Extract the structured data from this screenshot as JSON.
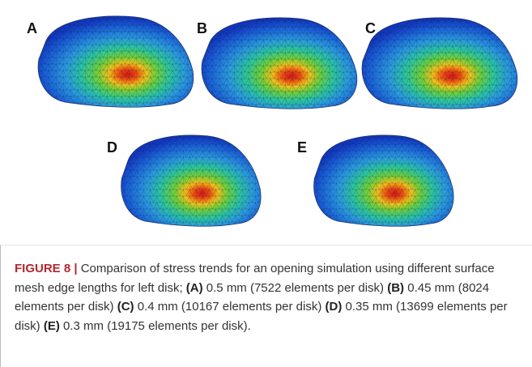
{
  "panels": {
    "labels": [
      "A",
      "B",
      "C",
      "D",
      "E"
    ]
  },
  "caption": {
    "figure_label": "FIGURE 8 |",
    "intro": "Comparison of stress trends for an opening simulation using different surface mesh edge lengths for left disk;",
    "items": [
      {
        "label": "(A)",
        "text": "0.5 mm (7522 elements per disk)"
      },
      {
        "label": "(B)",
        "text": "0.45 mm (8024 elements per disk)"
      },
      {
        "label": "(C)",
        "text": "0.4 mm (10167 elements per disk)"
      },
      {
        "label": "(D)",
        "text": "0.35 mm (13699 elements per disk)"
      },
      {
        "label": "(E)",
        "text": "0.3 mm (19175 elements per disk)."
      }
    ]
  }
}
